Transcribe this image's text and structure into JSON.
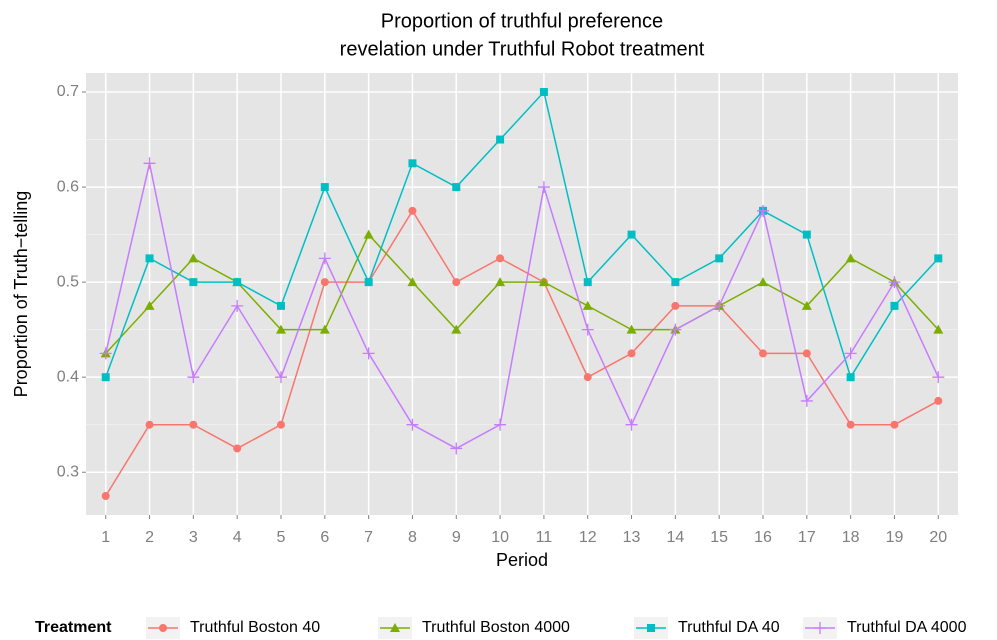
{
  "chart_data": {
    "type": "line",
    "title": [
      "Proportion of truthful preference",
      "revelation under Truthful Robot treatment"
    ],
    "x_label": "Period",
    "y_label": "Proportion of Truth−telling",
    "x": [
      1,
      2,
      3,
      4,
      5,
      6,
      7,
      8,
      9,
      10,
      11,
      12,
      13,
      14,
      15,
      16,
      17,
      18,
      19,
      20
    ],
    "xlim": [
      0.55,
      20.45
    ],
    "xticks": [
      1,
      2,
      3,
      4,
      5,
      6,
      7,
      8,
      9,
      10,
      11,
      12,
      13,
      14,
      15,
      16,
      17,
      18,
      19,
      20
    ],
    "ylim": [
      0.255,
      0.72
    ],
    "yticks": [
      0.3,
      0.4,
      0.5,
      0.6,
      0.7
    ],
    "grid": true,
    "legend_position": "bottom",
    "legend_title": "Treatment",
    "series": [
      {
        "name": "Truthful Boston 40",
        "color": "#F8766D",
        "shape": "circle",
        "values": [
          0.275,
          0.35,
          0.35,
          0.325,
          0.35,
          0.5,
          0.5,
          0.575,
          0.5,
          0.525,
          0.5,
          0.4,
          0.425,
          0.475,
          0.475,
          0.425,
          0.425,
          0.35,
          0.35,
          0.375
        ]
      },
      {
        "name": "Truthful Boston 4000",
        "color": "#7CAE00",
        "shape": "triangle",
        "values": [
          0.425,
          0.475,
          0.525,
          0.5,
          0.45,
          0.45,
          0.55,
          0.5,
          0.45,
          0.5,
          0.5,
          0.475,
          0.45,
          0.45,
          0.475,
          0.5,
          0.475,
          0.525,
          0.5,
          0.45
        ]
      },
      {
        "name": "Truthful DA 40",
        "color": "#00BFC4",
        "shape": "square",
        "values": [
          0.4,
          0.525,
          0.5,
          0.5,
          0.475,
          0.6,
          0.5,
          0.625,
          0.6,
          0.65,
          0.7,
          0.5,
          0.55,
          0.5,
          0.525,
          0.575,
          0.55,
          0.4,
          0.475,
          0.525
        ]
      },
      {
        "name": "Truthful DA 4000",
        "color": "#C77CFF",
        "shape": "plus",
        "values": [
          0.425,
          0.625,
          0.4,
          0.475,
          0.4,
          0.525,
          0.425,
          0.35,
          0.325,
          0.35,
          0.6,
          0.45,
          0.35,
          0.45,
          0.475,
          0.575,
          0.375,
          0.425,
          0.5,
          0.4
        ]
      }
    ]
  }
}
